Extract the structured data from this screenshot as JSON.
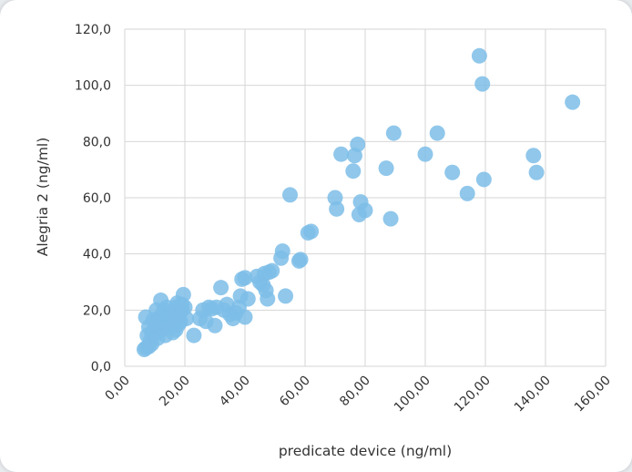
{
  "chart_data": {
    "type": "scatter",
    "xlabel": "predicate device (ng/ml)",
    "ylabel": "Alegria 2 (ng/ml)",
    "xlim": [
      0,
      160
    ],
    "ylim": [
      0,
      120
    ],
    "xticks": [
      "0,00",
      "20,00",
      "40,00",
      "60,00",
      "80,00",
      "100,00",
      "120,00",
      "140,00",
      "160,00"
    ],
    "yticks": [
      "0,0",
      "20,0",
      "40,0",
      "60,0",
      "80,0",
      "100,0",
      "120,0"
    ],
    "grid": true,
    "legend": "none",
    "marker_color": "#7dbde8",
    "points": [
      [
        6.5,
        6
      ],
      [
        7,
        6.5
      ],
      [
        8,
        7
      ],
      [
        9,
        8
      ],
      [
        8.5,
        9
      ],
      [
        7.5,
        11
      ],
      [
        9,
        12
      ],
      [
        10,
        13
      ],
      [
        11,
        12
      ],
      [
        8,
        14
      ],
      [
        7,
        17.5
      ],
      [
        10,
        15
      ],
      [
        11,
        17
      ],
      [
        12,
        16
      ],
      [
        12.5,
        18.5
      ],
      [
        13,
        20
      ],
      [
        12,
        23.5
      ],
      [
        14,
        21
      ],
      [
        14.5,
        18
      ],
      [
        15,
        16
      ],
      [
        15.5,
        14
      ],
      [
        16,
        12
      ],
      [
        17,
        13
      ],
      [
        16.5,
        19
      ],
      [
        17,
        21
      ],
      [
        17.5,
        22.5
      ],
      [
        18,
        18
      ],
      [
        18.5,
        16
      ],
      [
        19,
        20
      ],
      [
        19.5,
        25.5
      ],
      [
        20,
        21
      ],
      [
        20.5,
        17
      ],
      [
        14,
        15
      ],
      [
        13,
        13.5
      ],
      [
        11,
        10
      ],
      [
        13.5,
        11
      ],
      [
        15,
        19
      ],
      [
        16,
        17.5
      ],
      [
        18,
        15
      ],
      [
        19,
        22
      ],
      [
        10.5,
        20
      ],
      [
        9.5,
        16.5
      ],
      [
        23,
        11
      ],
      [
        25,
        17
      ],
      [
        26,
        20
      ],
      [
        27,
        16
      ],
      [
        28,
        21
      ],
      [
        29,
        20.5
      ],
      [
        30,
        14.5
      ],
      [
        30.5,
        21
      ],
      [
        32,
        28
      ],
      [
        33,
        20
      ],
      [
        34,
        22
      ],
      [
        35,
        18.5
      ],
      [
        36,
        17
      ],
      [
        37,
        19
      ],
      [
        38,
        21
      ],
      [
        38.5,
        25
      ],
      [
        39,
        31
      ],
      [
        40,
        31.5
      ],
      [
        40,
        17.5
      ],
      [
        41,
        24
      ],
      [
        44,
        32
      ],
      [
        45,
        30
      ],
      [
        46,
        29
      ],
      [
        46.5,
        33
      ],
      [
        47,
        27
      ],
      [
        47.5,
        24
      ],
      [
        48,
        33.5
      ],
      [
        49,
        34
      ],
      [
        52,
        38.5
      ],
      [
        52.5,
        41
      ],
      [
        53.5,
        25
      ],
      [
        55,
        61
      ],
      [
        58,
        37.5
      ],
      [
        58.5,
        38
      ],
      [
        61,
        47.5
      ],
      [
        62,
        48
      ],
      [
        70,
        60
      ],
      [
        70.5,
        56
      ],
      [
        72,
        75.5
      ],
      [
        76,
        69.5
      ],
      [
        76.5,
        75
      ],
      [
        77.5,
        79
      ],
      [
        78,
        54
      ],
      [
        78.5,
        58.5
      ],
      [
        80,
        55.5
      ],
      [
        87,
        70.5
      ],
      [
        88.5,
        52.5
      ],
      [
        89.5,
        83
      ],
      [
        100,
        75.5
      ],
      [
        104,
        83
      ],
      [
        109,
        69
      ],
      [
        114,
        61.5
      ],
      [
        118,
        110.5
      ],
      [
        119,
        100.5
      ],
      [
        119.5,
        66.5
      ],
      [
        136,
        75
      ],
      [
        137,
        69
      ],
      [
        149,
        94
      ]
    ]
  }
}
